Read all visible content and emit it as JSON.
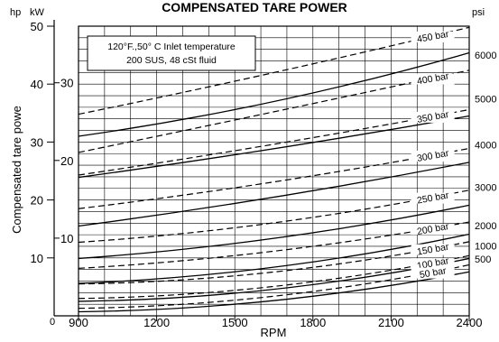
{
  "chart_data": {
    "type": "line",
    "title": "COMPENSATED TARE POWER",
    "xlabel": "RPM",
    "ylabel": "Compensated tare powe",
    "units": {
      "hp": "hp",
      "kw": "kW",
      "psi": "psi"
    },
    "annotation": [
      "120°F.,50° C Inlet temperature",
      "200 SUS, 48 cSt fluid"
    ],
    "x_ticks": [
      "900",
      "1200",
      "1500",
      "1800",
      "2100",
      "2400"
    ],
    "x_zero_label": "0",
    "xlim": [
      900,
      2400
    ],
    "ylim": [
      0,
      50
    ],
    "grid": true,
    "hp_ticks": [
      {
        "v": 10,
        "label": "10"
      },
      {
        "v": 20,
        "label": "20"
      },
      {
        "v": 30,
        "label": "30"
      },
      {
        "v": 40,
        "label": "40"
      },
      {
        "v": 50,
        "label": "50"
      }
    ],
    "kw_ticks": [
      {
        "hp": 13.41,
        "label": "10"
      },
      {
        "hp": 26.82,
        "label": "20"
      },
      {
        "hp": 40.23,
        "label": "30"
      }
    ],
    "psi_ticks": [
      {
        "hp": 9.8,
        "label": "500"
      },
      {
        "hp": 12.1,
        "label": "1000"
      },
      {
        "hp": 15.6,
        "label": "2000"
      },
      {
        "hp": 22.2,
        "label": "3000"
      },
      {
        "hp": 29.5,
        "label": "4000"
      },
      {
        "hp": 37.5,
        "label": "5000"
      },
      {
        "hp": 45.0,
        "label": "6000"
      }
    ],
    "dashed_series": [
      {
        "name": "450 bar",
        "values": [
          [
            900,
            34.8
          ],
          [
            1500,
            40.5
          ],
          [
            2400,
            49.8
          ]
        ]
      },
      {
        "name": "400 bar",
        "values": [
          [
            900,
            28.2
          ],
          [
            1500,
            33.8
          ],
          [
            2400,
            42.4
          ]
        ]
      },
      {
        "name": "350 bar",
        "values": [
          [
            900,
            24.3
          ],
          [
            1500,
            28.5
          ],
          [
            2400,
            35.6
          ]
        ]
      },
      {
        "name": "300 bar",
        "values": [
          [
            900,
            18.5
          ],
          [
            1500,
            22.1
          ],
          [
            2400,
            28.9
          ]
        ]
      },
      {
        "name": "250 bar",
        "values": [
          [
            900,
            12.7
          ],
          [
            1500,
            15.2
          ],
          [
            2400,
            21.7
          ]
        ]
      },
      {
        "name": "200 bar",
        "values": [
          [
            900,
            8.2
          ],
          [
            1500,
            10.4
          ],
          [
            2400,
            16.2
          ]
        ]
      },
      {
        "name": "150 bar",
        "values": [
          [
            900,
            5.5
          ],
          [
            1500,
            6.9
          ],
          [
            2400,
            12.8
          ]
        ]
      },
      {
        "name": "100 bar",
        "values": [
          [
            900,
            3.0
          ],
          [
            1500,
            4.4
          ],
          [
            2400,
            10.4
          ]
        ]
      },
      {
        "name": "50 bar",
        "values": [
          [
            900,
            1.3
          ],
          [
            1500,
            2.7
          ],
          [
            2400,
            8.8
          ]
        ]
      }
    ],
    "solid_series": [
      {
        "values": [
          [
            900,
            31.0
          ],
          [
            1500,
            35.6
          ],
          [
            2400,
            45.4
          ]
        ]
      },
      {
        "values": [
          [
            900,
            23.9
          ],
          [
            1500,
            27.8
          ],
          [
            2400,
            34.5
          ]
        ]
      },
      {
        "values": [
          [
            900,
            15.5
          ],
          [
            1500,
            19.4
          ],
          [
            2400,
            26.5
          ]
        ]
      },
      {
        "values": [
          [
            900,
            9.9
          ],
          [
            1500,
            12.5
          ],
          [
            2400,
            19.1
          ]
        ]
      },
      {
        "values": [
          [
            900,
            5.6
          ],
          [
            1500,
            7.6
          ],
          [
            2400,
            14.1
          ]
        ]
      },
      {
        "values": [
          [
            900,
            2.5
          ],
          [
            1500,
            3.9
          ],
          [
            2400,
            9.9
          ]
        ]
      },
      {
        "values": [
          [
            900,
            0.7
          ],
          [
            1500,
            2.0
          ],
          [
            2400,
            7.6
          ]
        ]
      }
    ]
  }
}
